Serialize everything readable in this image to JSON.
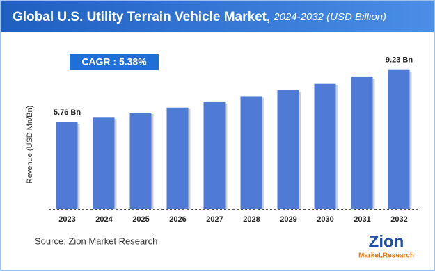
{
  "chart_data": {
    "type": "bar",
    "title": "Global U.S. Utility Terrain Vehicle Market,",
    "subtitle": "2024-2032 (USD Billion)",
    "annotation": "CAGR : 5.38%",
    "y_label": "Revenue (USD Mn/Bn)",
    "source": "Source: Zion Market Research",
    "logo": "Zion",
    "logo_sub": "Market.Research",
    "categories": [
      "2023",
      "2024",
      "2025",
      "2026",
      "2027",
      "2028",
      "2029",
      "2030",
      "2031",
      "2032"
    ],
    "values": [
      5.76,
      6.07,
      6.4,
      6.74,
      7.1,
      7.49,
      7.89,
      8.31,
      8.76,
      9.23
    ],
    "value_labels": [
      "5.76 Bn",
      null,
      null,
      null,
      null,
      null,
      null,
      null,
      null,
      "9.23 Bn"
    ],
    "color": "#4f7bd6",
    "ylim": [
      0,
      10
    ]
  }
}
